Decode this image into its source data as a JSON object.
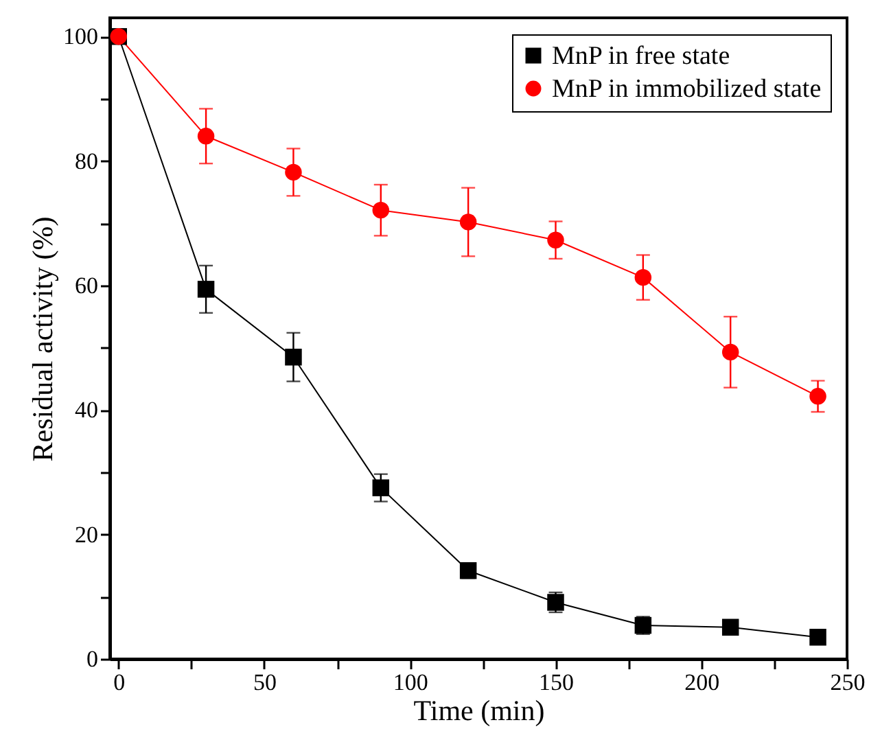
{
  "chart_data": {
    "type": "line",
    "xlabel": "Time (min)",
    "ylabel": "Residual activity (%)",
    "x": [
      0,
      30,
      60,
      90,
      120,
      150,
      180,
      210,
      240
    ],
    "xlim": [
      -3,
      250
    ],
    "ylim": [
      0,
      103
    ],
    "xticks": [
      0,
      {
        "value": 25,
        "label": null
      },
      50,
      {
        "value": 75,
        "label": null
      },
      100,
      {
        "value": 125,
        "label": null
      },
      150,
      {
        "value": 175,
        "label": null
      },
      200,
      {
        "value": 225,
        "label": null
      },
      250
    ],
    "yticks": [
      0,
      {
        "value": 10,
        "label": null
      },
      20,
      {
        "value": 30,
        "label": null
      },
      40,
      {
        "value": 50,
        "label": null
      },
      60,
      {
        "value": 70,
        "label": null
      },
      80,
      {
        "value": 90,
        "label": null
      },
      100
    ],
    "grid": false,
    "legend": "top right",
    "series": [
      {
        "name": "MnP in free state",
        "color": "#000000",
        "marker": "square",
        "values": [
          100,
          59.4,
          48.5,
          27.5,
          14.2,
          9.1,
          5.4,
          5.1,
          3.5
        ],
        "errors": [
          null,
          3.8,
          3.9,
          2.2,
          1.2,
          1.6,
          1.4,
          0.7,
          1.0
        ]
      },
      {
        "name": "MnP in immobilized state",
        "color": "#ff0000",
        "marker": "circle",
        "values": [
          100,
          84,
          78.2,
          72.1,
          70.2,
          67.3,
          61.3,
          49.3,
          42.2
        ],
        "errors": [
          null,
          4.4,
          3.8,
          4.1,
          5.5,
          3.0,
          3.6,
          5.7,
          2.5
        ]
      }
    ]
  }
}
